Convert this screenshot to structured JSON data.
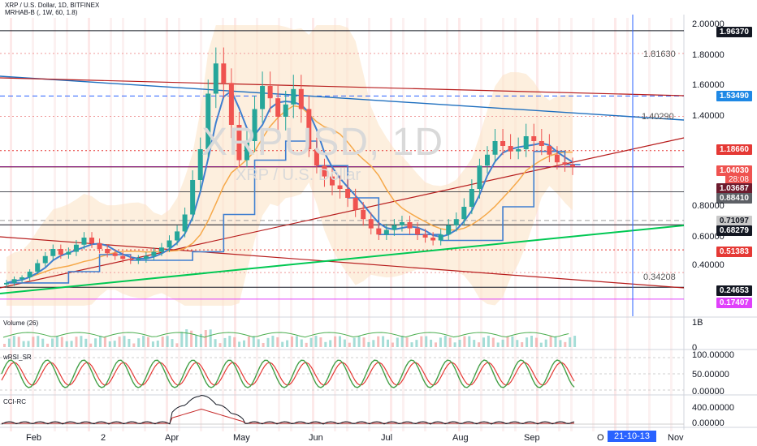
{
  "header": {
    "title": "XRP / U.S. Dollar, 1D, BITFINEX",
    "indicator": "MRHAB-B (, 1W, 60, 1.8)"
  },
  "watermark": {
    "symbol": "XRPUSD, 1D",
    "name": "XRP / U.S. Dollar"
  },
  "colors": {
    "up": "#26a69a",
    "down": "#ef5350",
    "blue": "#2962ff",
    "trend_green": "#00c853",
    "dark_red": "#b71c1c",
    "steel_blue": "#1e6fbf"
  },
  "chart_data": [
    {
      "type": "candlestick",
      "title": "XRP / U.S. Dollar, 1D, BITFINEX",
      "x_labels": [
        "Feb",
        "2",
        "Apr",
        "May",
        "Jun",
        "Jul",
        "Aug",
        "Sep",
        "O",
        "Nov"
      ],
      "y_ticks": [
        "2.00000",
        "1.80000",
        "1.60000",
        "1.40000",
        "0.80000",
        "0.60000",
        "0.40000"
      ],
      "ylim": [
        0.1,
        2.05
      ],
      "price_lines": [
        {
          "label": "1.96370",
          "value": 1.9637,
          "style": "black"
        },
        {
          "label": "1.81630",
          "value": 1.8163,
          "style": "plain"
        },
        {
          "label": "1.53490",
          "value": 1.5349,
          "style": "blue"
        },
        {
          "label": "1.40290",
          "value": 1.4029,
          "style": "plain"
        },
        {
          "label": "1.18660",
          "value": 1.1866,
          "style": "red"
        },
        {
          "label": "1.04030",
          "value": 1.0403,
          "style": "red-current"
        },
        {
          "label": "28:08",
          "value": null,
          "style": "countdown"
        },
        {
          "label": "1.03687",
          "value": 1.03687,
          "style": "maroon"
        },
        {
          "label": "0.88410",
          "value": 0.8841,
          "style": "gray"
        },
        {
          "label": "0.71097",
          "value": 0.71097,
          "style": "lightgray"
        },
        {
          "label": "0.68279",
          "value": 0.68279,
          "style": "black"
        },
        {
          "label": "0.51383",
          "value": 0.51383,
          "style": "red"
        },
        {
          "label": "0.34208",
          "value": 0.34208,
          "style": "plain"
        },
        {
          "label": "0.24653",
          "value": 0.24653,
          "style": "black"
        },
        {
          "label": "0.17407",
          "value": 0.17407,
          "style": "magenta"
        }
      ],
      "closes": [
        0.27,
        0.29,
        0.3,
        0.35,
        0.42,
        0.47,
        0.52,
        0.48,
        0.5,
        0.55,
        0.6,
        0.56,
        0.52,
        0.49,
        0.47,
        0.45,
        0.44,
        0.45,
        0.47,
        0.5,
        0.53,
        0.58,
        0.64,
        0.75,
        0.95,
        1.2,
        1.55,
        1.75,
        1.62,
        1.35,
        1.1,
        1.25,
        1.45,
        1.6,
        1.52,
        1.4,
        1.48,
        1.58,
        1.45,
        1.2,
        1.05,
        0.97,
        0.92,
        0.9,
        0.85,
        0.78,
        0.72,
        0.66,
        0.62,
        0.65,
        0.68,
        0.7,
        0.66,
        0.62,
        0.6,
        0.58,
        0.62,
        0.68,
        0.72,
        0.8,
        0.9,
        1.05,
        1.15,
        1.25,
        1.22,
        1.18,
        1.2,
        1.28,
        1.25,
        1.22,
        1.15,
        1.08,
        1.06,
        1.04
      ]
    },
    {
      "type": "bar",
      "title": "Volume (26)",
      "y_ticks": [
        "1B",
        "0"
      ]
    },
    {
      "type": "line",
      "title": "wRSI_SR",
      "y_ticks": [
        "100.00000",
        "50.00000",
        "0.00000"
      ]
    },
    {
      "type": "line",
      "title": "CCI-RC",
      "y_ticks": [
        "400.00000",
        "0.00000"
      ]
    }
  ],
  "time_axis": {
    "selected_date": "21-10-13"
  }
}
